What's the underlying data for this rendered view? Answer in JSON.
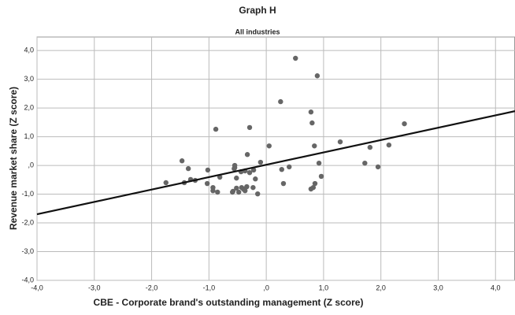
{
  "chart_data": {
    "type": "scatter",
    "title": "Graph H",
    "subtitle": "All industries",
    "x_label": "CBE -  Corporate brand's outstanding management (Z score)",
    "y_label": "Revenue market share (Z score)",
    "xlim": [
      -4,
      4.34
    ],
    "ylim": [
      -4,
      4.47
    ],
    "xticks": [
      {
        "value": -4,
        "label": "-4,0"
      },
      {
        "value": -3,
        "label": "-3,0"
      },
      {
        "value": -2,
        "label": "-2,0"
      },
      {
        "value": -1,
        "label": "-1,0"
      },
      {
        "value": 0,
        "label": ",0"
      },
      {
        "value": 1,
        "label": "1,0"
      },
      {
        "value": 2,
        "label": "2,0"
      },
      {
        "value": 3,
        "label": "3,0"
      },
      {
        "value": 4,
        "label": "4,0"
      }
    ],
    "yticks": [
      {
        "value": -4,
        "label": "-4,0"
      },
      {
        "value": -3,
        "label": "-3,0"
      },
      {
        "value": -2,
        "label": "-2,0"
      },
      {
        "value": -1,
        "label": "-1,0"
      },
      {
        "value": 0,
        "label": ",0"
      },
      {
        "value": 1,
        "label": "1,0"
      },
      {
        "value": 2,
        "label": "2,0"
      },
      {
        "value": 3,
        "label": "3,0"
      },
      {
        "value": 4,
        "label": "4,0"
      }
    ],
    "grid": true,
    "points": {
      "color": "#666666",
      "x": [
        -1.75,
        -1.47,
        -1.43,
        -1.36,
        -1.32,
        -1.24,
        -1.03,
        -1.02,
        -0.93,
        -0.93,
        -0.88,
        -0.85,
        -0.81,
        -0.59,
        -0.58,
        -0.56,
        -0.55,
        -0.55,
        -0.52,
        -0.52,
        -0.48,
        -0.44,
        -0.43,
        -0.4,
        -0.37,
        -0.37,
        -0.34,
        -0.33,
        -0.29,
        -0.29,
        -0.23,
        -0.22,
        -0.19,
        -0.15,
        -0.1,
        0.05,
        0.25,
        0.27,
        0.3,
        0.4,
        0.51,
        0.78,
        0.78,
        0.8,
        0.82,
        0.84,
        0.85,
        0.89,
        0.92,
        0.96,
        1.29,
        1.72,
        1.81,
        1.95,
        2.14,
        2.41
      ],
      "values": [
        -0.6,
        0.16,
        -0.6,
        -0.11,
        -0.49,
        -0.52,
        -0.63,
        -0.16,
        -0.77,
        -0.88,
        1.26,
        -0.93,
        -0.41,
        -0.93,
        -0.9,
        -0.11,
        -0.08,
        0,
        -0.44,
        -0.79,
        -0.93,
        -0.22,
        -0.77,
        -0.82,
        -0.88,
        -0.19,
        -0.74,
        0.38,
        -0.25,
        1.32,
        -0.77,
        -0.16,
        -0.47,
        -0.99,
        0.11,
        0.68,
        2.22,
        -0.14,
        -0.63,
        -0.05,
        3.73,
        -0.82,
        1.86,
        1.48,
        -0.77,
        0.68,
        -0.63,
        3.12,
        0.08,
        -0.38,
        0.82,
        0.08,
        0.63,
        -0.05,
        0.71,
        1.45
      ]
    },
    "fit_line": {
      "color": "#111111",
      "x": [
        -4,
        4.34
      ],
      "values": [
        -1.7,
        1.89
      ]
    }
  }
}
